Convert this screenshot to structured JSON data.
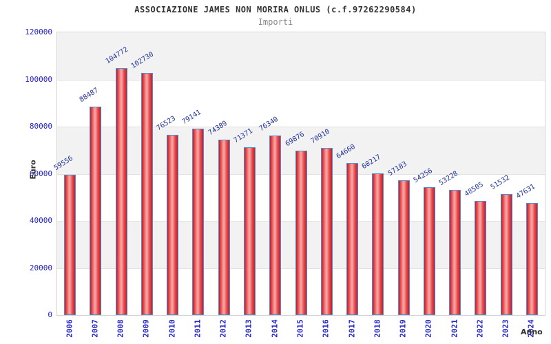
{
  "header": {
    "title": "ASSOCIAZIONE JAMES NON MORIRA ONLUS (c.f.97262290584)",
    "subtitle": "Importi"
  },
  "chart_data": {
    "type": "bar",
    "title": "ASSOCIAZIONE JAMES NON MORIRA ONLUS (c.f.97262290584)",
    "subtitle": "Importi",
    "xlabel": "Anno",
    "ylabel": "Euro",
    "categories": [
      "2006",
      "2007",
      "2008",
      "2009",
      "2010",
      "2011",
      "2012",
      "2013",
      "2014",
      "2015",
      "2016",
      "2017",
      "2018",
      "2019",
      "2020",
      "2021",
      "2022",
      "2023",
      "2024"
    ],
    "values": [
      59556,
      88487,
      104772,
      102730,
      76523,
      79141,
      74389,
      71371,
      76340,
      69876,
      70910,
      64660,
      60217,
      57183,
      54256,
      53228,
      48505,
      51532,
      47631
    ],
    "bar_value_labels": [
      "59556",
      "88487",
      "104772",
      "102730",
      "76523",
      "79141",
      "74389",
      "71371",
      "76340",
      "69876",
      "70910",
      "64660",
      "60217",
      "57183",
      "54256",
      "53228",
      "48505",
      "51532",
      "47631"
    ],
    "ylim": [
      0,
      120000
    ],
    "ytick_step": 20000,
    "yticks": [
      0,
      20000,
      40000,
      60000,
      80000,
      100000,
      120000
    ],
    "ytick_labels": [
      "0",
      "20000",
      "40000",
      "60000",
      "80000",
      "100000",
      "120000"
    ],
    "grid": "horizontal-bands",
    "legend": "none",
    "colors": {
      "title": "#333333",
      "subtitle": "#888888",
      "tick_text": "#2222cc",
      "value_label_text": "#223399",
      "axis_label_text": "#333333",
      "bar_border": "#4a90d2",
      "bar_dark": "#c01f2f",
      "bar_mid": "#e84b4b",
      "bar_light": "#f5a0a0",
      "band_gray": "#f2f2f2",
      "gridline": "#e0e0e0",
      "plot_border": "#d4d4d4"
    }
  }
}
